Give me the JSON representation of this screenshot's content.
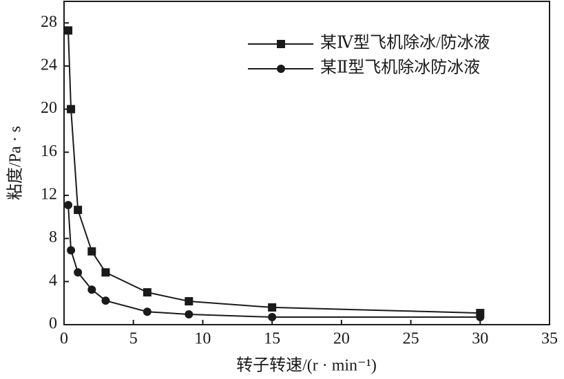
{
  "chart_data": {
    "type": "line",
    "x_label": "转子转速/(r · min⁻¹)",
    "y_label": "粘度/Pa · s",
    "x": [
      0.3,
      0.5,
      1,
      2,
      3,
      6,
      9,
      15,
      30
    ],
    "series": [
      {
        "name": "某Ⅳ型飞机除冰/防冰液",
        "color": "#1a1a1a",
        "marker": "square",
        "values": [
          27.3,
          20.0,
          10.65,
          6.8,
          4.85,
          3.0,
          2.17,
          1.6,
          1.08
        ]
      },
      {
        "name": "某Ⅱ型飞机除冰防冰液",
        "color": "#1a1a1a",
        "marker": "circle",
        "values": [
          11.1,
          6.9,
          4.85,
          3.25,
          2.23,
          1.2,
          0.96,
          0.7,
          0.7
        ]
      }
    ],
    "xlim": [
      0,
      35
    ],
    "xticks": [
      0,
      5,
      10,
      15,
      20,
      25,
      30,
      35
    ],
    "ylim": [
      0,
      30
    ],
    "yticks": [
      0,
      4,
      8,
      12,
      16,
      20,
      24,
      28
    ],
    "legend": "upper right"
  }
}
